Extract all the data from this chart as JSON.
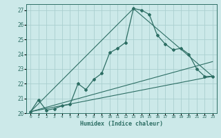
{
  "xlabel": "Humidex (Indice chaleur)",
  "bg_color": "#cce9e9",
  "grid_color": "#aacfcf",
  "line_color": "#2d6e64",
  "xlim": [
    -0.5,
    23.5
  ],
  "ylim": [
    20,
    27.4
  ],
  "yticks": [
    20,
    21,
    22,
    23,
    24,
    25,
    26,
    27
  ],
  "xticks": [
    0,
    1,
    2,
    3,
    4,
    5,
    6,
    7,
    8,
    9,
    10,
    11,
    12,
    13,
    14,
    15,
    16,
    17,
    18,
    19,
    20,
    21,
    22,
    23
  ],
  "series1_x": [
    0,
    1,
    2,
    3,
    4,
    5,
    6,
    7,
    8,
    9,
    10,
    11,
    12,
    13,
    14,
    15,
    16,
    17,
    18,
    19,
    20,
    21,
    22,
    23
  ],
  "series1_y": [
    20.1,
    20.9,
    20.2,
    20.3,
    20.5,
    20.6,
    22.0,
    21.6,
    22.3,
    22.7,
    24.1,
    24.4,
    24.8,
    27.1,
    27.0,
    26.7,
    25.3,
    24.7,
    24.3,
    24.4,
    24.0,
    23.0,
    22.5,
    22.5
  ],
  "series2_x": [
    0,
    23
  ],
  "series2_y": [
    20.1,
    22.5
  ],
  "series3_x": [
    0,
    23
  ],
  "series3_y": [
    20.1,
    23.5
  ],
  "series4_x": [
    0,
    13,
    23
  ],
  "series4_y": [
    20.1,
    27.1,
    22.5
  ]
}
